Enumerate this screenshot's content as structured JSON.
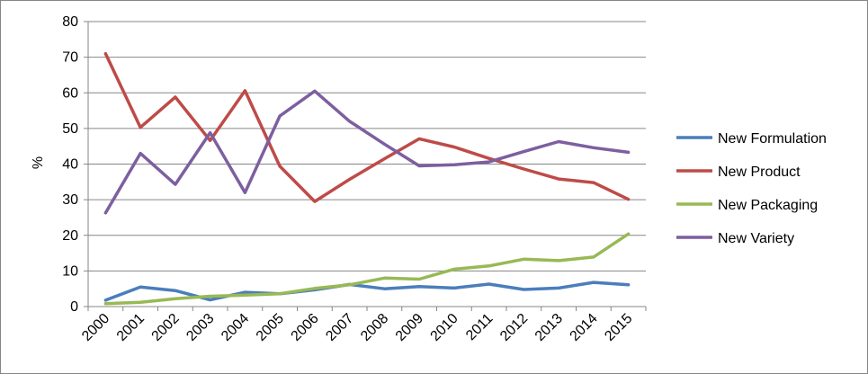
{
  "chart_data": {
    "type": "line",
    "title": "",
    "xlabel": "",
    "ylabel": "%",
    "ylim": [
      0,
      80
    ],
    "yticks": [
      0,
      10,
      20,
      30,
      40,
      50,
      60,
      70,
      80
    ],
    "grid": true,
    "legend_position": "right",
    "categories": [
      "2000",
      "2001",
      "2002",
      "2003",
      "2004",
      "2005",
      "2006",
      "2007",
      "2008",
      "2009",
      "2010",
      "2011",
      "2012",
      "2013",
      "2014",
      "2015"
    ],
    "series": [
      {
        "name": "New Formulation",
        "color": "#4a7ebb",
        "values": [
          1.8,
          5.5,
          4.5,
          1.9,
          4.0,
          3.6,
          4.7,
          6.2,
          5.0,
          5.6,
          5.2,
          6.3,
          4.8,
          5.2,
          6.8,
          6.1
        ]
      },
      {
        "name": "New Product",
        "color": "#be4b48",
        "values": [
          71.0,
          50.3,
          58.8,
          46.6,
          60.6,
          39.4,
          29.5,
          35.7,
          41.5,
          47.1,
          44.8,
          41.6,
          38.6,
          35.8,
          34.8,
          30.1
        ]
      },
      {
        "name": "New Packaging",
        "color": "#98b954",
        "values": [
          0.8,
          1.2,
          2.2,
          2.9,
          3.2,
          3.6,
          5.1,
          6.1,
          8.0,
          7.7,
          10.5,
          11.4,
          13.3,
          12.9,
          13.9,
          20.4
        ]
      },
      {
        "name": "New Variety",
        "color": "#7d5fa0",
        "values": [
          26.3,
          43.0,
          34.3,
          48.8,
          32.0,
          53.5,
          60.5,
          52.0,
          45.6,
          39.5,
          39.8,
          40.6,
          43.5,
          46.3,
          44.6,
          43.3
        ]
      }
    ]
  }
}
